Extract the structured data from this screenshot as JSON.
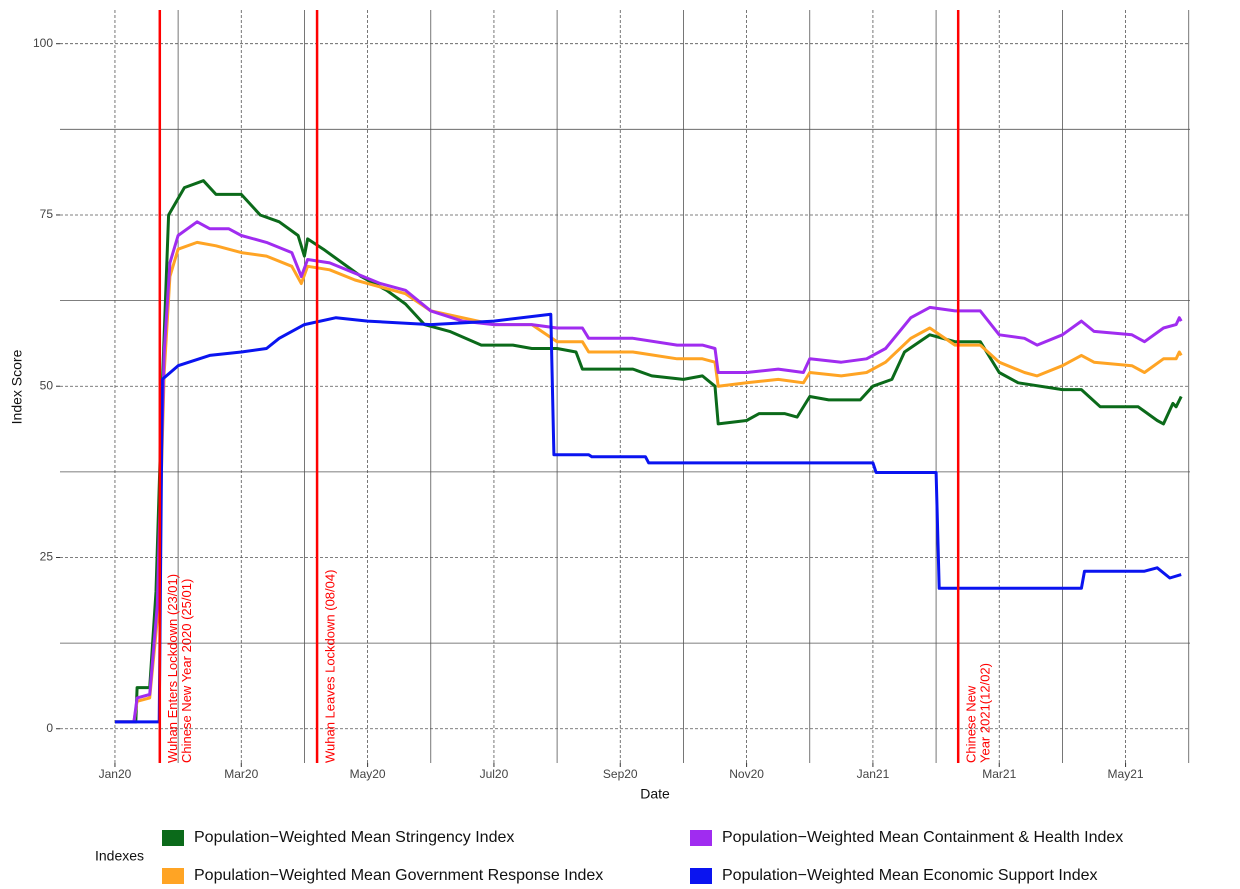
{
  "chart_data": {
    "type": "line",
    "xlabel": "Date",
    "ylabel": "Index Score",
    "xlim": [
      -0.87,
      17.02
    ],
    "ylim": [
      -5,
      102
    ],
    "xticks": [
      {
        "value": 0,
        "label": "Jan20"
      },
      {
        "value": 2,
        "label": "Mar20"
      },
      {
        "value": 4,
        "label": "May20"
      },
      {
        "value": 6,
        "label": "Jul20"
      },
      {
        "value": 8,
        "label": "Sep20"
      },
      {
        "value": 10,
        "label": "Nov20"
      },
      {
        "value": 12,
        "label": "Jan21"
      },
      {
        "value": 14,
        "label": "Mar21"
      },
      {
        "value": 16,
        "label": "May21"
      }
    ],
    "yticks": [
      0,
      25,
      50,
      75,
      100
    ],
    "xminorticks": [
      1,
      3,
      5,
      7,
      9,
      11,
      13,
      15,
      17
    ],
    "yminorticks": [
      12.5,
      37.5,
      62.5,
      87.5
    ],
    "grid": true,
    "legend_title": "Indexes",
    "legend": "bottom",
    "vlines": [
      {
        "x": 0.71,
        "color": "#ff0000",
        "labels": [
          "Wuhan Enters Lockdown (23/01)",
          "Chinese New Year 2020 (25/01)"
        ]
      },
      {
        "x": 3.2,
        "color": "#ff0000",
        "labels": [
          "Wuhan Leaves Lockdown (08/04)"
        ]
      },
      {
        "x": 13.35,
        "color": "#ff0000",
        "labels": [
          "Chinese New",
          "Year 2021(12/02)"
        ]
      }
    ],
    "series": [
      {
        "name": "Population−Weighted Mean Stringency Index",
        "color": "#0b6a1a",
        "x": [
          0,
          0.33,
          0.35,
          0.55,
          0.65,
          0.75,
          0.85,
          1.1,
          1.4,
          1.6,
          2.0,
          2.3,
          2.6,
          2.9,
          3.0,
          3.05,
          3.3,
          3.6,
          3.9,
          4.3,
          4.6,
          4.9,
          5.3,
          5.8,
          6.3,
          6.6,
          7.0,
          7.3,
          7.4,
          8.2,
          8.5,
          9.0,
          9.3,
          9.5,
          9.55,
          10.0,
          10.2,
          10.6,
          10.8,
          11.0,
          11.3,
          11.8,
          12.0,
          12.3,
          12.5,
          12.9,
          13.3,
          13.7,
          14.0,
          14.3,
          15.0,
          15.3,
          15.6,
          16.2,
          16.5,
          16.6,
          16.75,
          16.8,
          16.88
        ],
        "values": [
          1,
          1,
          6,
          6,
          20,
          50,
          75,
          79,
          80,
          78,
          78,
          75,
          74,
          72,
          69,
          71.5,
          70,
          68,
          66,
          64,
          62,
          59,
          58,
          56,
          56,
          55.5,
          55.5,
          55,
          52.5,
          52.5,
          51.5,
          51,
          51.5,
          50,
          44.5,
          45,
          46,
          46,
          45.5,
          48.5,
          48,
          48,
          50,
          51,
          55,
          57.5,
          56.5,
          56.5,
          52,
          50.5,
          49.5,
          49.5,
          47,
          47,
          45,
          44.5,
          47.5,
          47,
          48.5
        ]
      },
      {
        "name": "Population−Weighted Mean Government Response Index",
        "color": "#ffa424",
        "x": [
          0,
          0.3,
          0.35,
          0.55,
          0.67,
          0.78,
          0.87,
          1.0,
          1.3,
          1.6,
          2.0,
          2.4,
          2.8,
          2.95,
          3.05,
          3.4,
          3.8,
          4.2,
          4.6,
          5.0,
          5.5,
          6.0,
          6.6,
          7.0,
          7.4,
          7.5,
          8.2,
          8.9,
          9.3,
          9.5,
          9.55,
          10.0,
          10.5,
          10.9,
          11.0,
          11.5,
          11.9,
          12.2,
          12.6,
          12.9,
          13.3,
          13.7,
          14.0,
          14.4,
          14.6,
          15.0,
          15.3,
          15.5,
          16.1,
          16.3,
          16.6,
          16.8,
          16.85,
          16.88
        ],
        "values": [
          1,
          1,
          4,
          4.5,
          16,
          52,
          66,
          70,
          71,
          70.5,
          69.5,
          69,
          67.5,
          65,
          67.5,
          67,
          65.5,
          64.5,
          63.5,
          61,
          60,
          59,
          59,
          56.5,
          56.5,
          55,
          55,
          54,
          54,
          53.5,
          50,
          50.5,
          51,
          50.5,
          52,
          51.5,
          52,
          53.5,
          57,
          58.5,
          56,
          56,
          53.5,
          52,
          51.5,
          53,
          54.5,
          53.5,
          53,
          52,
          54,
          54,
          55,
          54.5
        ]
      },
      {
        "name": "Population−Weighted Mean Containment & Health Index",
        "color": "#a02cf0",
        "x": [
          0,
          0.3,
          0.35,
          0.55,
          0.67,
          0.78,
          0.87,
          1.0,
          1.3,
          1.5,
          1.8,
          2.0,
          2.4,
          2.8,
          2.95,
          3.05,
          3.4,
          3.8,
          4.2,
          4.6,
          5.0,
          5.5,
          6.0,
          6.6,
          7.0,
          7.4,
          7.5,
          8.2,
          8.9,
          9.3,
          9.5,
          9.55,
          10.0,
          10.5,
          10.9,
          11.0,
          11.5,
          11.9,
          12.2,
          12.6,
          12.9,
          13.3,
          13.7,
          14.0,
          14.4,
          14.6,
          15.0,
          15.3,
          15.5,
          16.1,
          16.3,
          16.6,
          16.8,
          16.85,
          16.88
        ],
        "values": [
          1,
          1,
          4.5,
          5,
          18,
          55,
          68,
          72,
          74,
          73,
          73,
          72,
          71,
          69.5,
          66,
          68.5,
          68,
          66.5,
          65,
          64,
          61,
          59.5,
          59,
          59,
          58.5,
          58.5,
          57,
          57,
          56,
          56,
          55.5,
          52,
          52,
          52.5,
          52,
          54,
          53.5,
          54,
          55.5,
          60,
          61.5,
          61,
          61,
          57.5,
          57,
          56,
          57.5,
          59.5,
          58,
          57.5,
          56.5,
          58.5,
          59,
          60,
          59.5
        ]
      },
      {
        "name": "Population−Weighted Mean Economic Support Index",
        "color": "#0a14f0",
        "x": [
          0,
          0.7,
          0.75,
          1.0,
          1.5,
          2.0,
          2.4,
          2.6,
          3.0,
          3.5,
          4.0,
          5.0,
          6.0,
          6.9,
          6.95,
          7.5,
          7.55,
          8.4,
          8.45,
          12.0,
          12.05,
          13.0,
          13.05,
          15.3,
          15.35,
          16.3,
          16.5,
          16.7,
          16.88
        ],
        "values": [
          1,
          1,
          51,
          53,
          54.5,
          55,
          55.5,
          57,
          59,
          60,
          59.5,
          59,
          59.5,
          60.5,
          40,
          40,
          39.7,
          39.7,
          38.8,
          38.8,
          37.4,
          37.4,
          20.5,
          20.5,
          23,
          23,
          23.5,
          22,
          22.5
        ]
      }
    ]
  }
}
